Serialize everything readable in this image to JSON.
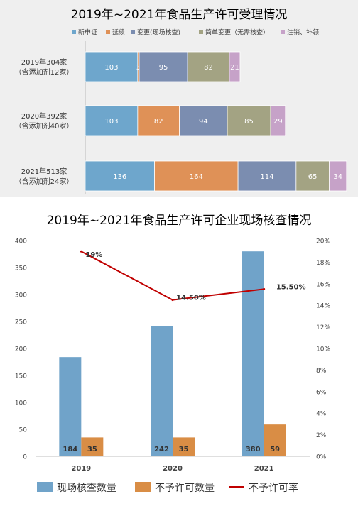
{
  "chart_data": [
    {
      "type": "bar",
      "orientation": "horizontal",
      "stacked": true,
      "title": "2019年~2021年食品生产许可受理情况",
      "categories": [
        [
          "2019年304家",
          "（含添加剂12家）"
        ],
        [
          "2020年392家",
          "（含添加剂40家）"
        ],
        [
          "2021年513家",
          "（含添加剂24家）"
        ]
      ],
      "series": [
        {
          "name": "新申证",
          "values": [
            103,
            103,
            136
          ],
          "color": "#6ea6cc"
        },
        {
          "name": "延续",
          "values": [
            3,
            82,
            164
          ],
          "color": "#df9157"
        },
        {
          "name": "变更(现场核查)",
          "values": [
            95,
            94,
            114
          ],
          "color": "#7b8db0"
        },
        {
          "name": "简单变更（无需核查）",
          "values": [
            82,
            85,
            65
          ],
          "color": "#a3a383"
        },
        {
          "name": "注销、补领",
          "values": [
            21,
            29,
            34
          ],
          "color": "#c6a2c8"
        }
      ],
      "xlim": [
        0,
        530
      ],
      "legend": "top"
    },
    {
      "type": "bar",
      "title": "2019年~2021年食品生产许可企业现场核查情况",
      "categories": [
        "2019",
        "2020",
        "2021"
      ],
      "series": [
        {
          "name": "现场核查数量",
          "type": "bar",
          "axis": "left",
          "values": [
            184,
            242,
            380
          ],
          "color": "#70a3c9"
        },
        {
          "name": "不予许可数量",
          "type": "bar",
          "axis": "left",
          "values": [
            35,
            35,
            59
          ],
          "color": "#d98d45"
        },
        {
          "name": "不予许可率",
          "type": "line",
          "axis": "right",
          "values": [
            19,
            14.5,
            15.5
          ],
          "labels": [
            "19%",
            "14.50%",
            "15.50%"
          ],
          "color": "#c00000"
        }
      ],
      "ylim": [
        0,
        400
      ],
      "yticks": [
        0,
        50,
        100,
        150,
        200,
        250,
        300,
        350,
        400
      ],
      "y2lim": [
        0,
        20
      ],
      "y2ticks": [
        "0%",
        "2%",
        "4%",
        "6%",
        "8%",
        "10%",
        "12%",
        "14%",
        "16%",
        "18%",
        "20%"
      ],
      "legend": "bottom"
    }
  ]
}
